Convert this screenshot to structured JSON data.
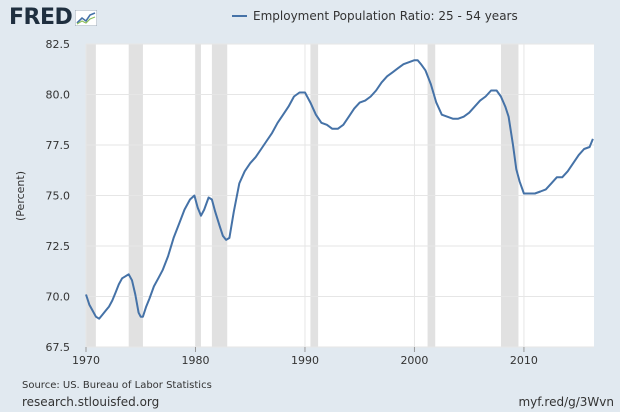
{
  "brand": {
    "logo_text": "FRED"
  },
  "footer": {
    "source": "Source: US. Bureau of Labor Statistics",
    "site": "research.stlouisfed.org",
    "shortlink": "myf.red/g/3Wvn"
  },
  "colors": {
    "series": "#4572a7",
    "recession": "#e1e1e1",
    "background": "#e1e9f0"
  },
  "chart_data": {
    "type": "line",
    "title": "",
    "xlabel": "",
    "ylabel": "(Percent)",
    "xlim": [
      1970,
      2016.4
    ],
    "ylim": [
      67.5,
      82.5
    ],
    "xticks": [
      "1970",
      "1980",
      "1990",
      "2000",
      "2010"
    ],
    "yticks": [
      "67.5",
      "70.0",
      "72.5",
      "75.0",
      "77.5",
      "80.0",
      "82.5"
    ],
    "grid": true,
    "legend_position": "top",
    "recessions": [
      [
        1970.0,
        1970.9
      ],
      [
        1973.9,
        1975.2
      ],
      [
        1980.0,
        1980.5
      ],
      [
        1981.5,
        1982.9
      ],
      [
        1990.5,
        1991.2
      ],
      [
        2001.2,
        2001.9
      ],
      [
        2007.9,
        2009.5
      ]
    ],
    "series": [
      {
        "name": "Employment Population Ratio: 25 - 54 years",
        "x": [
          1970.0,
          1970.3,
          1970.6,
          1970.9,
          1971.2,
          1971.5,
          1971.8,
          1972.1,
          1972.4,
          1972.7,
          1973.0,
          1973.3,
          1973.6,
          1973.9,
          1974.2,
          1974.5,
          1974.8,
          1975.0,
          1975.2,
          1975.5,
          1975.8,
          1976.2,
          1976.6,
          1977.0,
          1977.5,
          1978.0,
          1978.5,
          1979.0,
          1979.5,
          1979.9,
          1980.2,
          1980.5,
          1980.8,
          1981.2,
          1981.5,
          1981.8,
          1982.2,
          1982.5,
          1982.8,
          1983.1,
          1983.5,
          1984.0,
          1984.5,
          1985.0,
          1985.5,
          1986.0,
          1986.5,
          1987.0,
          1987.5,
          1988.0,
          1988.5,
          1989.0,
          1989.5,
          1990.0,
          1990.5,
          1991.0,
          1991.5,
          1992.0,
          1992.5,
          1993.0,
          1993.5,
          1994.0,
          1994.5,
          1995.0,
          1995.5,
          1996.0,
          1996.5,
          1997.0,
          1997.5,
          1998.0,
          1998.5,
          1999.0,
          1999.5,
          2000.0,
          2000.3,
          2000.6,
          2001.0,
          2001.5,
          2002.0,
          2002.5,
          2003.0,
          2003.5,
          2004.0,
          2004.5,
          2005.0,
          2005.5,
          2006.0,
          2006.5,
          2007.0,
          2007.5,
          2007.9,
          2008.3,
          2008.6,
          2009.0,
          2009.3,
          2009.6,
          2010.0,
          2010.5,
          2011.0,
          2011.5,
          2012.0,
          2012.5,
          2013.0,
          2013.5,
          2014.0,
          2014.5,
          2015.0,
          2015.5,
          2016.0,
          2016.3
        ],
        "values": [
          70.1,
          69.6,
          69.3,
          69.0,
          68.9,
          69.1,
          69.3,
          69.5,
          69.8,
          70.2,
          70.6,
          70.9,
          71.0,
          71.1,
          70.8,
          70.1,
          69.2,
          69.0,
          69.0,
          69.5,
          69.9,
          70.5,
          70.9,
          71.3,
          72.0,
          72.9,
          73.6,
          74.3,
          74.8,
          75.0,
          74.4,
          74.0,
          74.3,
          74.9,
          74.8,
          74.2,
          73.5,
          73.0,
          72.8,
          72.9,
          74.2,
          75.6,
          76.2,
          76.6,
          76.9,
          77.3,
          77.7,
          78.1,
          78.6,
          79.0,
          79.4,
          79.9,
          80.1,
          80.1,
          79.6,
          79.0,
          78.6,
          78.5,
          78.3,
          78.3,
          78.5,
          78.9,
          79.3,
          79.6,
          79.7,
          79.9,
          80.2,
          80.6,
          80.9,
          81.1,
          81.3,
          81.5,
          81.6,
          81.7,
          81.7,
          81.5,
          81.2,
          80.5,
          79.6,
          79.0,
          78.9,
          78.8,
          78.8,
          78.9,
          79.1,
          79.4,
          79.7,
          79.9,
          80.2,
          80.2,
          79.9,
          79.4,
          78.9,
          77.5,
          76.3,
          75.7,
          75.1,
          75.1,
          75.1,
          75.2,
          75.3,
          75.6,
          75.9,
          75.9,
          76.2,
          76.6,
          77.0,
          77.3,
          77.4,
          77.8
        ]
      }
    ]
  }
}
